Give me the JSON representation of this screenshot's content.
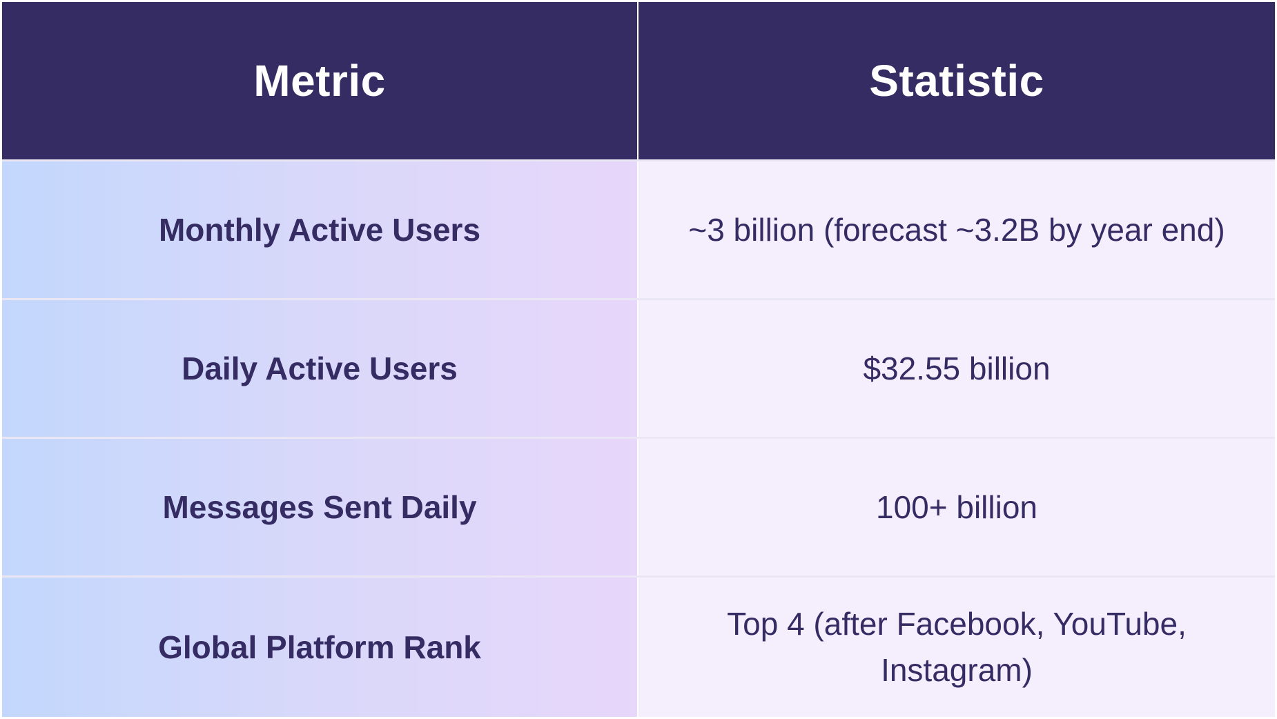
{
  "table": {
    "headers": [
      "Metric",
      "Statistic"
    ],
    "rows": [
      {
        "metric": "Monthly Active Users",
        "statistic": "~3 billion (forecast ~3.2B by year end)"
      },
      {
        "metric": "Daily Active Users",
        "statistic": "$32.55 billion"
      },
      {
        "metric": "Messages Sent Daily",
        "statistic": "100+ billion"
      },
      {
        "metric": "Global Platform Rank",
        "statistic": "Top 4 (after Facebook, YouTube, Instagram)"
      }
    ]
  },
  "colors": {
    "header_bg": "#352c63",
    "header_text": "#ffffff",
    "body_text": "#352c63",
    "metric_gradient_start": "#c3d7fd",
    "metric_gradient_end": "#e7d7fa",
    "statistic_bg": "#f5eefd"
  }
}
